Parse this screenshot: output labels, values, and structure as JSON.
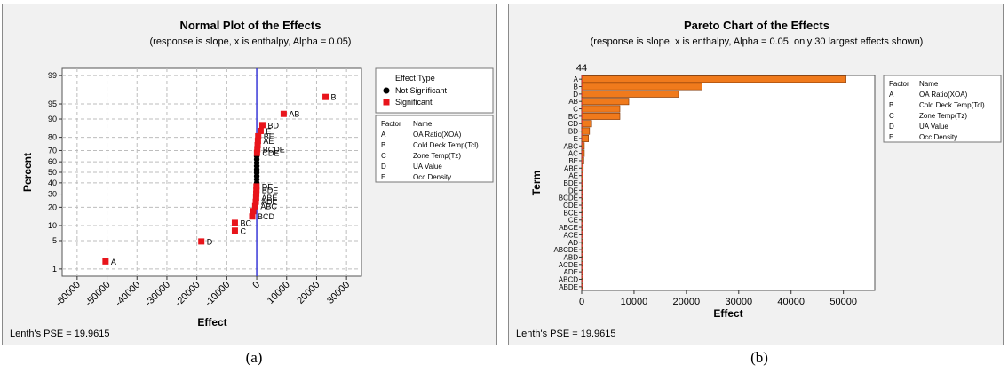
{
  "figure_a": {
    "caption": "(a)",
    "pse": "Lenth's PSE = 19.9615",
    "legend": {
      "title": "Effect Type",
      "items": [
        {
          "label": "Not Significant",
          "color": "#000000"
        },
        {
          "label": "Significant",
          "color": "#e8141b"
        }
      ]
    }
  },
  "figure_b": {
    "caption": "(b)",
    "pse": "Lenth's PSE = 19.9615",
    "reference_value": "44"
  },
  "factor_table": {
    "headers": [
      "Factor",
      "Name"
    ],
    "rows": [
      [
        "A",
        "OA Ratio(XOA)"
      ],
      [
        "B",
        "Cold Deck Temp(Tcl)"
      ],
      [
        "C",
        "Zone Temp(Tz)"
      ],
      [
        "D",
        "UA Value"
      ],
      [
        "E",
        "Occ.Density"
      ]
    ]
  },
  "colors": {
    "significant": "#e8141b",
    "not_significant": "#000000",
    "bar": "#f07a1c",
    "reference_line": "#3a3ad8",
    "grid": "#bdbdbd"
  },
  "chart_data": [
    {
      "type": "scatter",
      "title": "Normal Plot of the Effects",
      "subtitle": "(response is slope, x is enthalpy, Alpha = 0.05)",
      "xlabel": "Effect",
      "ylabel": "Percent",
      "xlim": [
        -60000,
        30000
      ],
      "xticks": [
        -60000,
        -50000,
        -40000,
        -30000,
        -20000,
        -10000,
        0,
        10000,
        20000,
        30000
      ],
      "yticks": [
        1,
        5,
        10,
        20,
        30,
        40,
        50,
        60,
        70,
        80,
        90,
        95,
        99
      ],
      "grid": true,
      "legend_position": "right",
      "significant_points": [
        {
          "label": "A",
          "x": -50500,
          "y": 1.6
        },
        {
          "label": "D",
          "x": -18500,
          "y": 4.8
        },
        {
          "label": "C",
          "x": -7300,
          "y": 8.0
        },
        {
          "label": "BC",
          "x": -7300,
          "y": 11.2
        },
        {
          "label": "BCD",
          "x": -1500,
          "y": 14.4
        },
        {
          "label": "",
          "x": -1200,
          "y": 17.5
        },
        {
          "label": "ABC",
          "x": -500,
          "y": 20.7
        },
        {
          "label": "ADE",
          "x": -300,
          "y": 23.9
        },
        {
          "label": "ABE",
          "x": -200,
          "y": 27.1
        },
        {
          "label": "",
          "x": -150,
          "y": 30.3
        },
        {
          "label": "BDE",
          "x": -100,
          "y": 33.5
        },
        {
          "label": "DE",
          "x": -80,
          "y": 36.7
        },
        {
          "label": "CDE",
          "x": 100,
          "y": 68.0
        },
        {
          "label": "BCDE",
          "x": 200,
          "y": 71.1
        },
        {
          "label": "",
          "x": 300,
          "y": 74.3
        },
        {
          "label": "AE",
          "x": 400,
          "y": 77.5
        },
        {
          "label": "BE",
          "x": 500,
          "y": 80.7
        },
        {
          "label": "E",
          "x": 1300,
          "y": 84.0
        },
        {
          "label": "BD",
          "x": 1900,
          "y": 87.2
        },
        {
          "label": "AB",
          "x": 9000,
          "y": 92.0
        },
        {
          "label": "B",
          "x": 23000,
          "y": 96.5
        }
      ],
      "not_significant_points": [
        {
          "x": 0,
          "y": 40.0
        },
        {
          "x": 0,
          "y": 43.2
        },
        {
          "x": 0,
          "y": 46.4
        },
        {
          "x": 0,
          "y": 49.6
        },
        {
          "x": 0,
          "y": 52.8
        },
        {
          "x": 0,
          "y": 55.9
        },
        {
          "x": 0,
          "y": 59.1
        },
        {
          "x": 0,
          "y": 62.3
        },
        {
          "x": 0,
          "y": 65.0
        }
      ]
    },
    {
      "type": "bar",
      "orientation": "horizontal",
      "title": "Pareto Chart of the Effects",
      "subtitle": "(response is slope, x is enthalpy, Alpha = 0.05, only 30 largest effects shown)",
      "xlabel": "Effect",
      "ylabel": "Term",
      "xlim": [
        0,
        56000
      ],
      "xticks": [
        0,
        10000,
        20000,
        30000,
        40000,
        50000
      ],
      "reference_line": 44,
      "categories": [
        "A",
        "B",
        "D",
        "AB",
        "C",
        "BC",
        "CD",
        "BD",
        "E",
        "ABC",
        "AC",
        "BE",
        "ABE",
        "AE",
        "BDE",
        "DE",
        "BCDE",
        "CDE",
        "BCE",
        "CE",
        "ABCE",
        "ACE",
        "AD",
        "ABCDE",
        "ABD",
        "ACDE",
        "ADE",
        "ABCD",
        "ABDE"
      ],
      "values": [
        50500,
        23000,
        18500,
        9000,
        7300,
        7300,
        1900,
        1500,
        1300,
        500,
        500,
        400,
        300,
        200,
        150,
        100,
        80,
        60,
        40,
        30,
        20,
        15,
        12,
        10,
        8,
        6,
        5,
        4,
        3
      ]
    }
  ]
}
